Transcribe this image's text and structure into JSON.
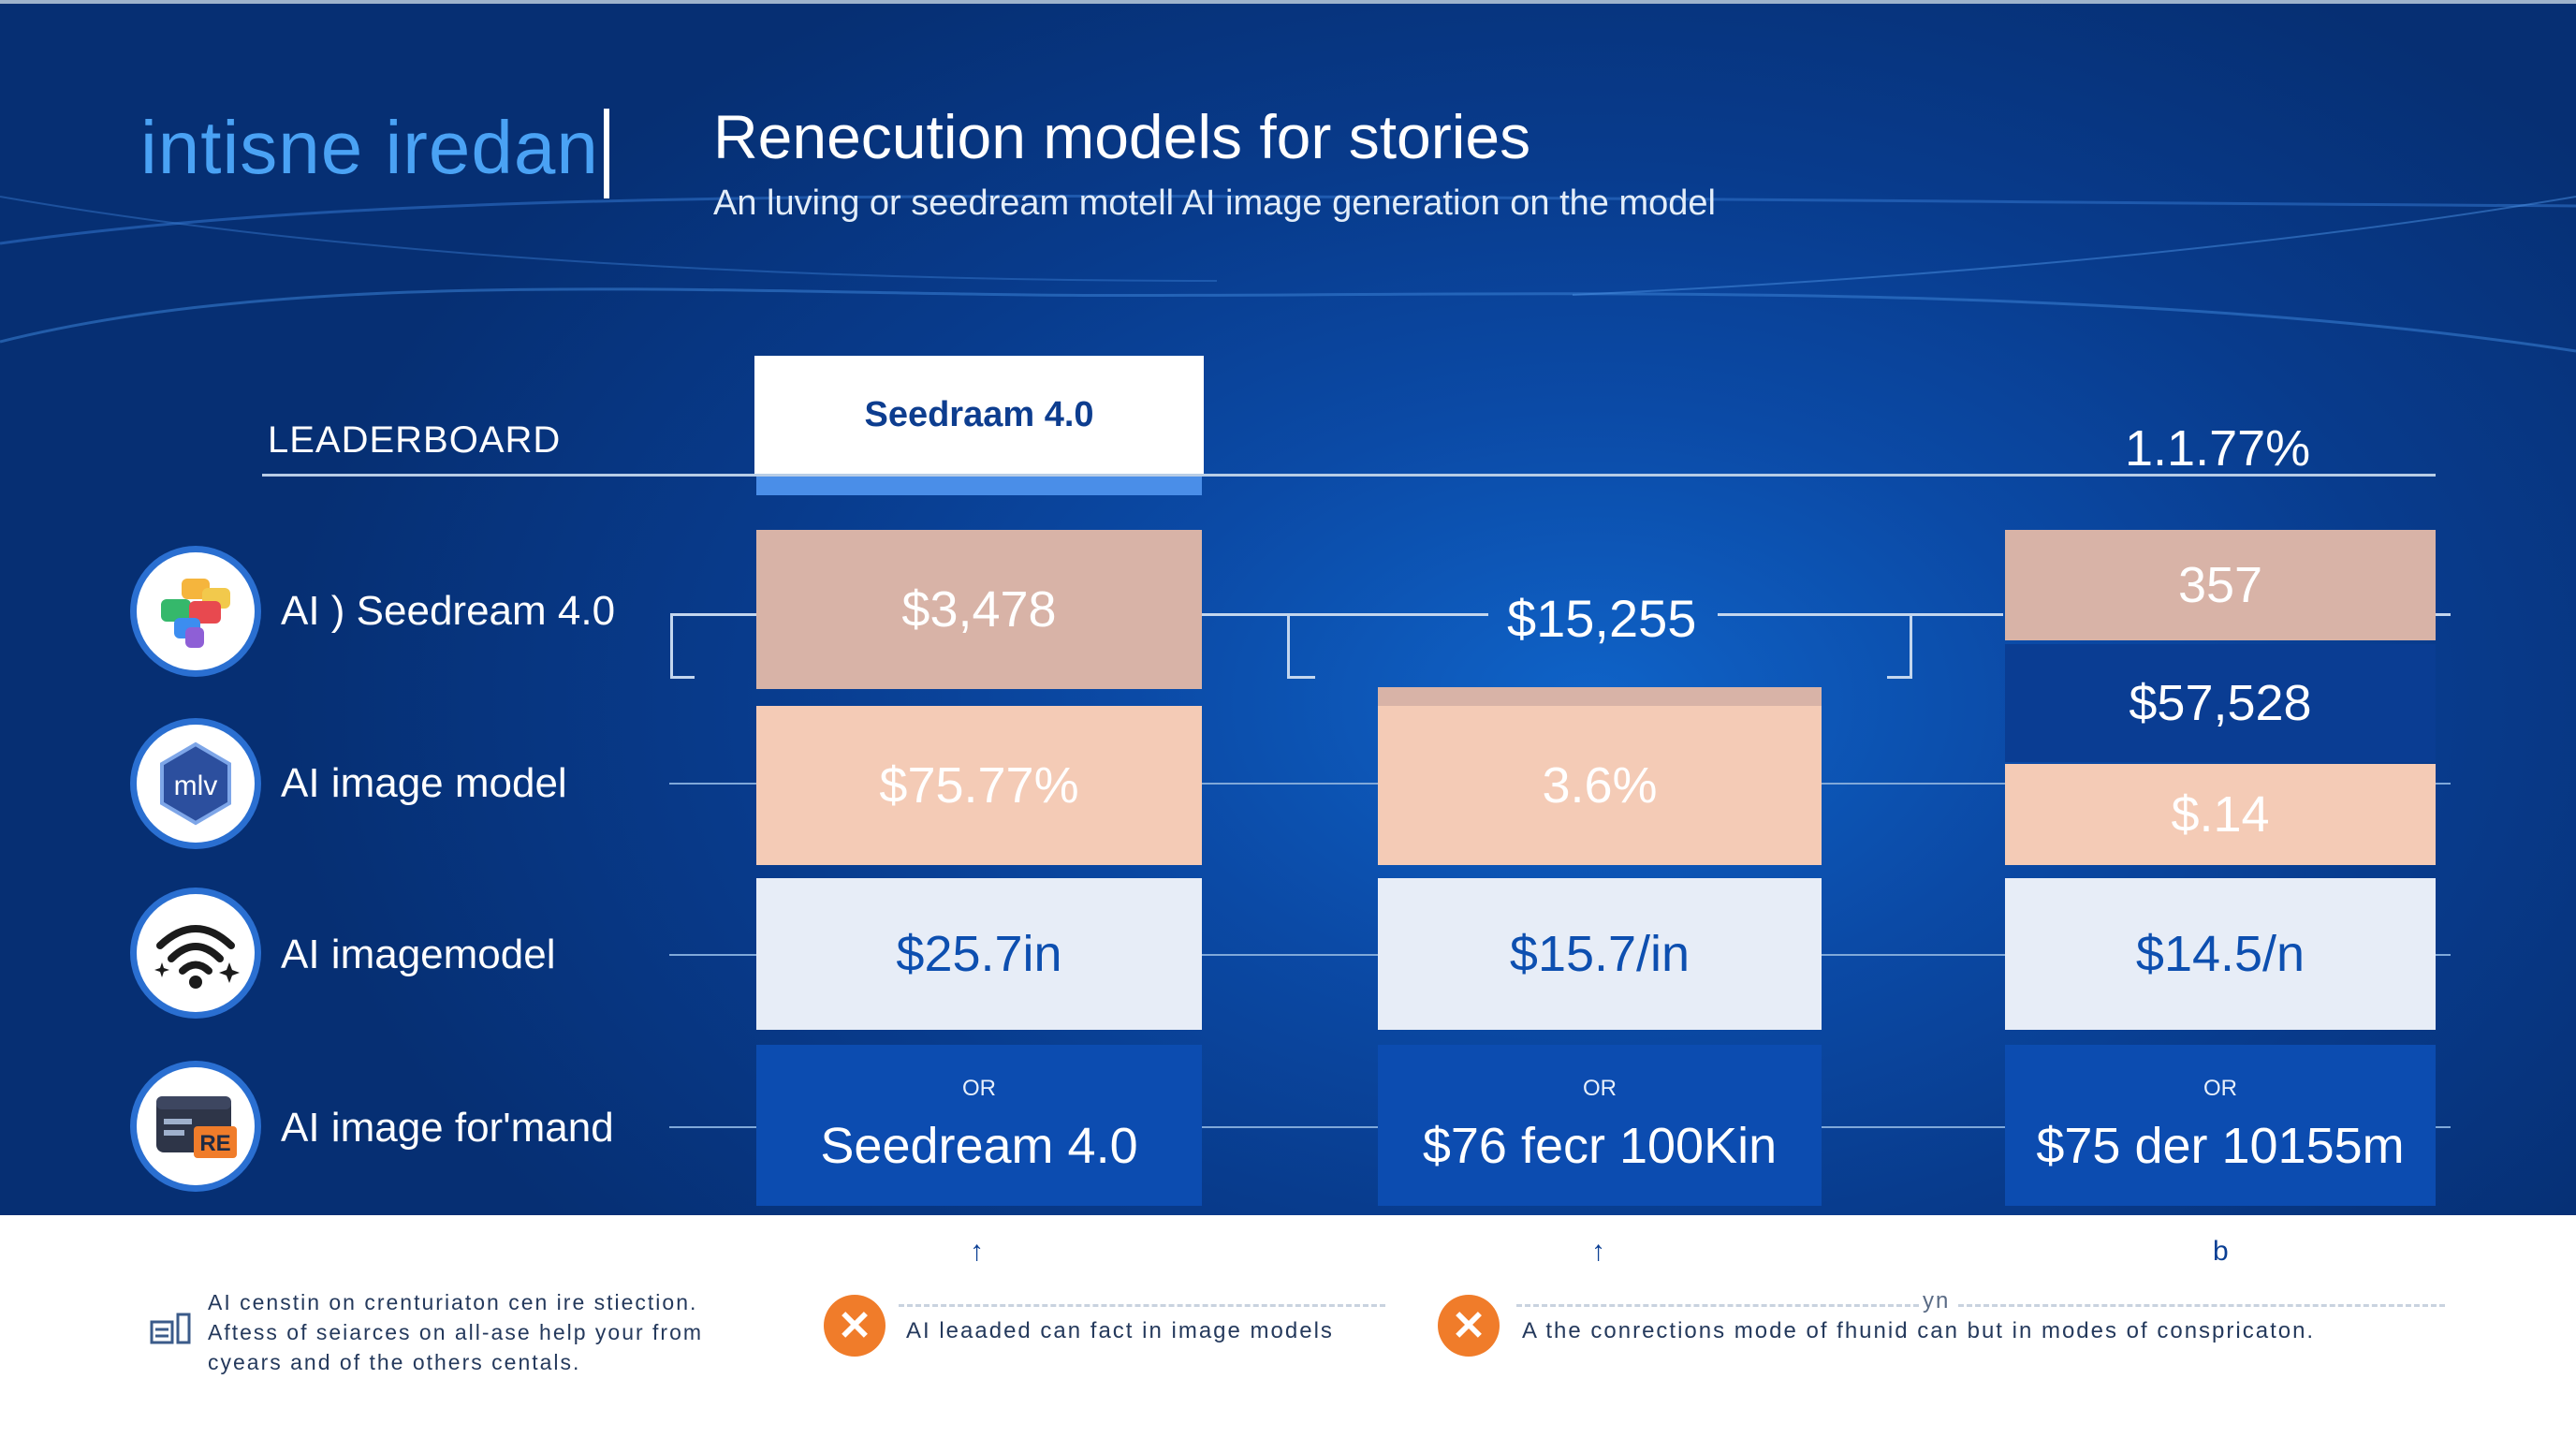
{
  "header": {
    "brand": "intisne iredan",
    "title": "Renecution models for stories",
    "subtitle": "An luving or seedream motell AI  image generation on the model"
  },
  "leaderboard": {
    "label": "LEADERBOARD",
    "column_header": "Seedraam 4.0",
    "percent_header": "1.1.77%"
  },
  "rows": [
    {
      "label": "AI ) Seedream 4.0",
      "icon": "colorful-puzzle-icon"
    },
    {
      "label": "AI image model",
      "icon": "mv-logo-icon"
    },
    {
      "label": "AI imagemodel",
      "icon": "wifi-sparkle-icon"
    },
    {
      "label": "AI image for'mand",
      "icon": "re-window-icon"
    }
  ],
  "columns": [
    {
      "values": [
        "$3,478",
        "$75.77%",
        "$25.7in"
      ],
      "or_label": "OR",
      "or_value": "Seedream 4.0"
    },
    {
      "top_value": "$15,255",
      "values": [
        "3.6%",
        "$15.7/in"
      ],
      "or_label": "OR",
      "or_value": "$76 fecr 100Kin"
    },
    {
      "values": [
        "357",
        "$57,528",
        "$.14",
        "$14.5/n"
      ],
      "or_label": "OR",
      "or_value": "$75 der 10155m"
    }
  ],
  "footer": {
    "arrows": [
      "↑",
      "↑",
      "b"
    ],
    "yn_label": "yn",
    "description": [
      "AI censtin on crenturiaton cen ire stiection.",
      "Aftess of seiarces on all-ase help your from",
      "cyears and of the others centals."
    ],
    "note1": "AI leaaded can fact in image models",
    "note2": "A the conrections mode of fhunid can but in modes of conspricaton."
  },
  "colors": {
    "background": "#0b4aa6",
    "brand": "#4aa2f4",
    "rose": "#d8b3a7",
    "peach": "#f4cbb6",
    "pale": "#e7edf7",
    "blue_cell": "#0c4cb0",
    "warning": "#f07c2a"
  }
}
